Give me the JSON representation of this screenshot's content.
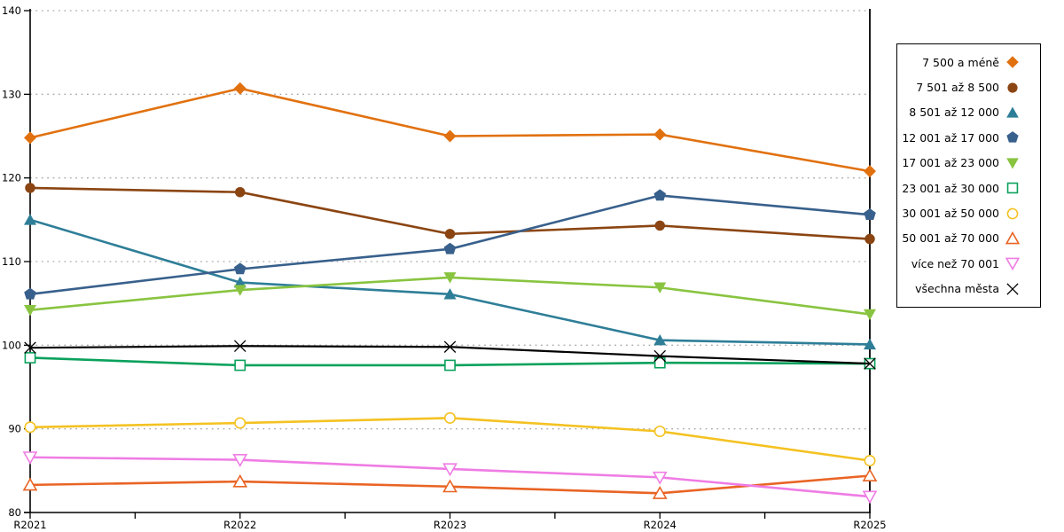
{
  "chart_data": {
    "type": "line",
    "title": "",
    "xlabel": "",
    "ylabel": "",
    "categories": [
      "R2021",
      "R2022",
      "R2023",
      "R2024",
      "R2025"
    ],
    "ylim": [
      80,
      140
    ],
    "y_ticks": [
      80,
      90,
      100,
      110,
      120,
      130,
      140
    ],
    "grid": "horizontal dotted",
    "legend_position": "right",
    "axis_color": "#000000",
    "grid_color": "#aaaaaa",
    "series": [
      {
        "name": "7 500 a méně",
        "marker": "diamond",
        "fill": "filled",
        "color": "#e1710f",
        "values": [
          124.8,
          130.7,
          125.0,
          125.2,
          120.8
        ]
      },
      {
        "name": "7 501 až 8 500",
        "marker": "circle",
        "fill": "filled",
        "color": "#8b4512",
        "values": [
          118.8,
          118.3,
          113.3,
          114.3,
          112.7
        ]
      },
      {
        "name": "8 501 až 12 000",
        "marker": "triangle-up",
        "fill": "filled",
        "color": "#2e7e98",
        "values": [
          115.0,
          107.5,
          106.1,
          100.6,
          100.1
        ]
      },
      {
        "name": "12 001 až 17 000",
        "marker": "pentagon",
        "fill": "filled",
        "color": "#38608c",
        "values": [
          106.1,
          109.1,
          111.5,
          117.9,
          115.6
        ]
      },
      {
        "name": "17 001 až 23 000",
        "marker": "triangle-down",
        "fill": "filled",
        "color": "#89c440",
        "values": [
          104.2,
          106.6,
          108.1,
          106.9,
          103.7
        ]
      },
      {
        "name": "23 001 až 30 000",
        "marker": "square",
        "fill": "open",
        "color": "#0aa15c",
        "values": [
          98.5,
          97.6,
          97.6,
          97.9,
          97.8
        ]
      },
      {
        "name": "30 001 až 50 000",
        "marker": "circle",
        "fill": "open",
        "color": "#f4c222",
        "values": [
          90.2,
          90.7,
          91.3,
          89.7,
          86.2
        ]
      },
      {
        "name": "50 001 až 70 000",
        "marker": "triangle-up",
        "fill": "open",
        "color": "#e96425",
        "values": [
          83.3,
          83.7,
          83.1,
          82.3,
          84.4
        ]
      },
      {
        "name": "více než 70 001",
        "marker": "triangle-down",
        "fill": "open",
        "color": "#ef7ce4",
        "values": [
          86.6,
          86.3,
          85.2,
          84.2,
          81.9
        ]
      },
      {
        "name": "všechna města",
        "marker": "x",
        "fill": "line",
        "color": "#000000",
        "values": [
          99.7,
          99.9,
          99.8,
          98.7,
          97.8
        ]
      }
    ]
  }
}
